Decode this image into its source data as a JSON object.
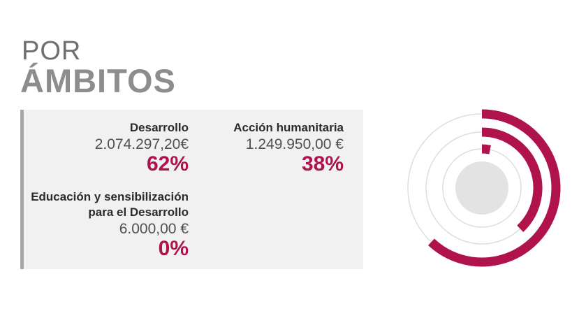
{
  "header": {
    "line1": "POR",
    "line2": "ÁMBITOS"
  },
  "items": [
    {
      "label": "Desarrollo",
      "amount": "2.074.297,20€",
      "percent": "62%"
    },
    {
      "label": "Acción humanitaria",
      "amount": "1.249.950,00 €",
      "percent": "38%"
    },
    {
      "label": "Educación y sensibilización para el Desarrollo",
      "amount": "6.000,00 €",
      "percent": "0%"
    }
  ],
  "chart_data": {
    "type": "radial-bar",
    "categories": [
      "Desarrollo",
      "Acción humanitaria",
      "Educación y sensibilización para el Desarrollo"
    ],
    "values": [
      62,
      38,
      0
    ],
    "amounts": [
      2074297.2,
      1249950.0,
      6000.0
    ],
    "unit": "%",
    "colors": {
      "arc": "#b0124c",
      "track": "#dedede",
      "center": "#e3e3e4"
    }
  }
}
